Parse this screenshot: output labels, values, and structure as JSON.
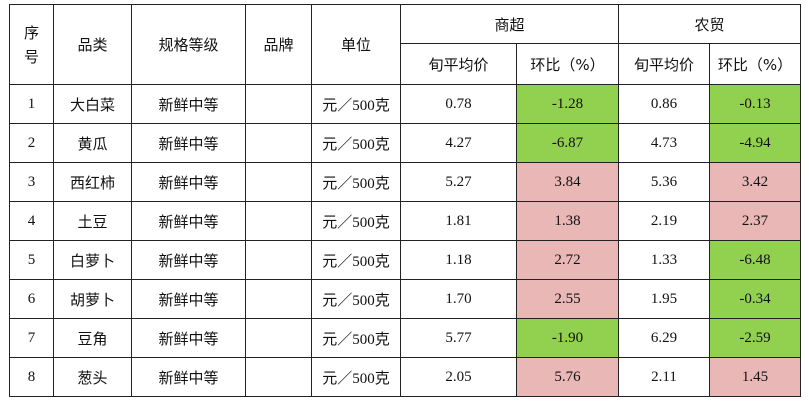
{
  "table": {
    "headers": {
      "index": "序号",
      "category": "品类",
      "spec": "规格等级",
      "brand": "品牌",
      "unit": "单位",
      "supermarket": "商超",
      "market": "农贸",
      "avg_price": "旬平均价",
      "ratio": "环比（%）"
    },
    "rows": [
      {
        "index": "1",
        "category": "大白菜",
        "spec": "新鲜中等",
        "brand": "",
        "unit": "元／500克",
        "sm_price": "0.78",
        "sm_ratio": "-1.28",
        "mk_price": "0.86",
        "mk_ratio": "-0.13"
      },
      {
        "index": "2",
        "category": "黄瓜",
        "spec": "新鲜中等",
        "brand": "",
        "unit": "元／500克",
        "sm_price": "4.27",
        "sm_ratio": "-6.87",
        "mk_price": "4.73",
        "mk_ratio": "-4.94"
      },
      {
        "index": "3",
        "category": "西红柿",
        "spec": "新鲜中等",
        "brand": "",
        "unit": "元／500克",
        "sm_price": "5.27",
        "sm_ratio": "3.84",
        "mk_price": "5.36",
        "mk_ratio": "3.42"
      },
      {
        "index": "4",
        "category": "土豆",
        "spec": "新鲜中等",
        "brand": "",
        "unit": "元／500克",
        "sm_price": "1.81",
        "sm_ratio": "1.38",
        "mk_price": "2.19",
        "mk_ratio": "2.37"
      },
      {
        "index": "5",
        "category": "白萝卜",
        "spec": "新鲜中等",
        "brand": "",
        "unit": "元／500克",
        "sm_price": "1.18",
        "sm_ratio": "2.72",
        "mk_price": "1.33",
        "mk_ratio": "-6.48"
      },
      {
        "index": "6",
        "category": "胡萝卜",
        "spec": "新鲜中等",
        "brand": "",
        "unit": "元／500克",
        "sm_price": "1.70",
        "sm_ratio": "2.55",
        "mk_price": "1.95",
        "mk_ratio": "-0.34"
      },
      {
        "index": "7",
        "category": "豆角",
        "spec": "新鲜中等",
        "brand": "",
        "unit": "元／500克",
        "sm_price": "5.77",
        "sm_ratio": "-1.90",
        "mk_price": "6.29",
        "mk_ratio": "-2.59"
      },
      {
        "index": "8",
        "category": "葱头",
        "spec": "新鲜中等",
        "brand": "",
        "unit": "元／500克",
        "sm_price": "2.05",
        "sm_ratio": "5.76",
        "mk_price": "2.11",
        "mk_ratio": "1.45"
      }
    ]
  },
  "colors": {
    "increase_fill": "#e9b7b6",
    "decrease_fill": "#92d050",
    "border": "#222222"
  }
}
